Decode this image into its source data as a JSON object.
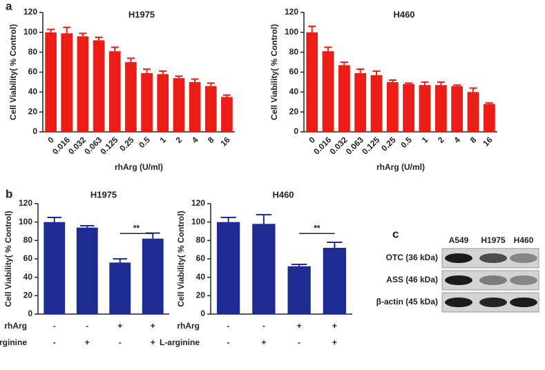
{
  "chart_data": [
    {
      "type": "bar",
      "panel_label": "a",
      "title": "H1975",
      "x_label": "rhArg (U/ml)",
      "y_label": "Cell Viability( % Control)",
      "categories": [
        "0",
        "0.016",
        "0.032",
        "0.063",
        "0.125",
        "0.25",
        "0.5",
        "1",
        "2",
        "4",
        "8",
        "16"
      ],
      "values": [
        100,
        99,
        96,
        92,
        81,
        70,
        59,
        58,
        54,
        50,
        46,
        35
      ],
      "errors": [
        3,
        6,
        3,
        3,
        4,
        4,
        4,
        3,
        2,
        3,
        3,
        2
      ],
      "color": "#ec1c17",
      "ylim": [
        0,
        120
      ],
      "yticks": [
        0,
        20,
        40,
        60,
        80,
        100,
        120
      ]
    },
    {
      "type": "bar",
      "title": "H460",
      "x_label": "rhArg (U/ml)",
      "y_label": "Cell Viability( % Control)",
      "categories": [
        "0",
        "0.016",
        "0.032",
        "0.063",
        "0.125",
        "0.25",
        "0.5",
        "1",
        "2",
        "4",
        "8",
        "16"
      ],
      "values": [
        100,
        81,
        67,
        59,
        57,
        50,
        48,
        47,
        47,
        46,
        40,
        28
      ],
      "errors": [
        6,
        4,
        3,
        4,
        4,
        2,
        1,
        3,
        3,
        1,
        4,
        1
      ],
      "color": "#ec1c17",
      "ylim": [
        0,
        120
      ],
      "yticks": [
        0,
        20,
        40,
        60,
        80,
        100,
        120
      ]
    },
    {
      "type": "bar",
      "panel_label": "b",
      "title": "H1975",
      "y_label": "Cell Viability( % Control)",
      "values": [
        100,
        94,
        56,
        82
      ],
      "errors": [
        5,
        2,
        4,
        6
      ],
      "conditions": [
        {
          "name": "rhArg",
          "labels": [
            "-",
            "-",
            "+",
            "+"
          ]
        },
        {
          "name": "L-arginine",
          "labels": [
            "-",
            "+",
            "-",
            "+"
          ]
        }
      ],
      "annotation": "**",
      "color": "#1e2b93",
      "ylim": [
        0,
        120
      ],
      "yticks": [
        0,
        20,
        40,
        60,
        80,
        100,
        120
      ]
    },
    {
      "type": "bar",
      "title": "H460",
      "y_label": "Cell Viability( % Control)",
      "values": [
        100,
        98,
        52,
        72
      ],
      "errors": [
        5,
        10,
        2,
        6
      ],
      "conditions": [
        {
          "name": "rhArg",
          "labels": [
            "-",
            "-",
            "+",
            "+"
          ]
        },
        {
          "name": "L-arginine",
          "labels": [
            "-",
            "+",
            "-",
            "+"
          ]
        }
      ],
      "annotation": "**",
      "color": "#1e2b93",
      "ylim": [
        0,
        120
      ],
      "yticks": [
        0,
        20,
        40,
        60,
        80,
        100,
        120
      ]
    }
  ],
  "blot": {
    "panel_label": "c",
    "lanes": [
      "A549",
      "H1975",
      "H460"
    ],
    "rows": [
      "OTC (36 kDa)",
      "ASS (46 kDa)",
      "β-actin (45 kDa)"
    ]
  }
}
